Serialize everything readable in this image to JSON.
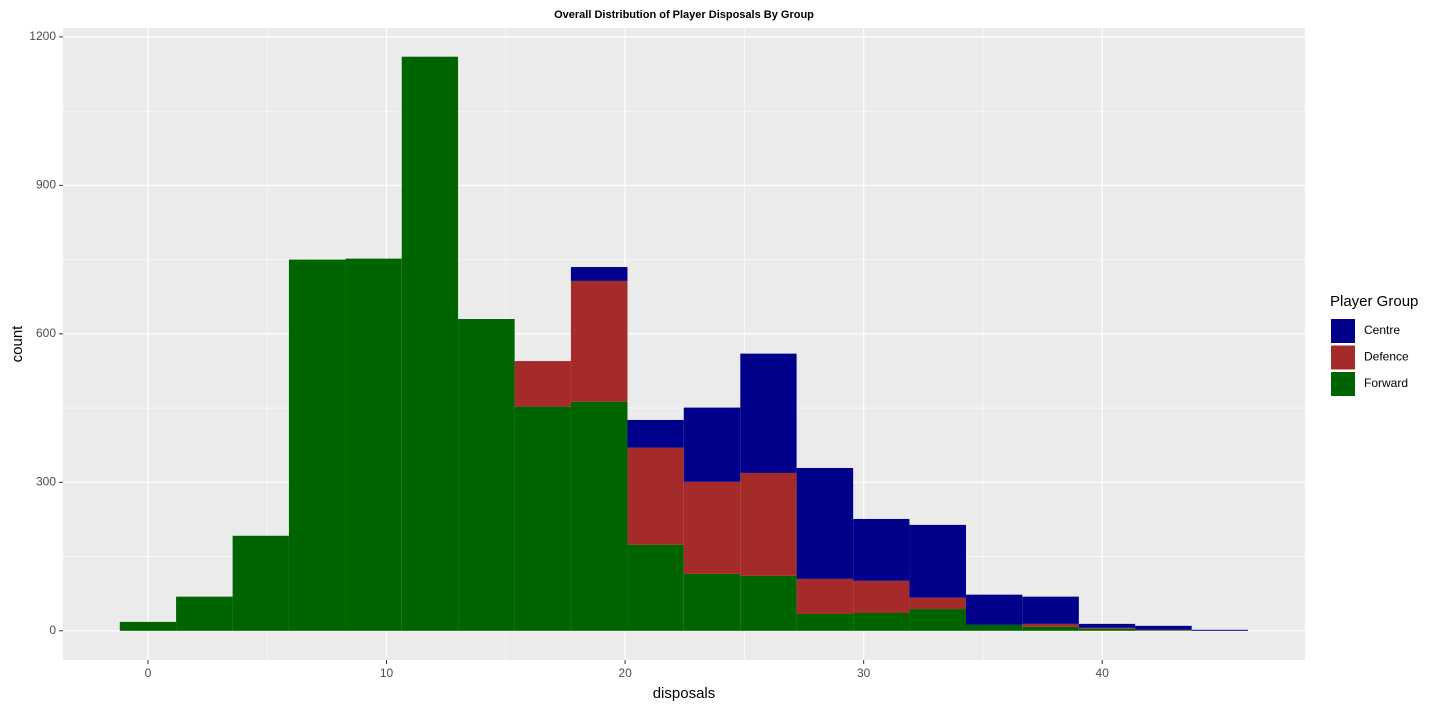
{
  "chart_data": {
    "type": "histogram",
    "title": "Overall Distribution of Player Disposals By Group",
    "x_label": "disposals",
    "y_label": "count",
    "legend_title": "Player Group",
    "legend_position": "right",
    "bins": [
      -1.18,
      1.18,
      3.55,
      5.91,
      8.28,
      10.64,
      13.0,
      15.37,
      17.73,
      20.1,
      22.46,
      24.83,
      27.19,
      29.56,
      31.92,
      34.29,
      36.65,
      39.02,
      41.38,
      43.75,
      46.11
    ],
    "stacked": true,
    "grid": true,
    "series": [
      {
        "name": "Centre",
        "color": "#00008b",
        "values": [
          0,
          0,
          0,
          0,
          0,
          0,
          0,
          0,
          28,
          56,
          150,
          241,
          224,
          125,
          147,
          61,
          55,
          8,
          8,
          2
        ]
      },
      {
        "name": "Defence",
        "color": "#a52a2a",
        "values": [
          0,
          0,
          0,
          0,
          0,
          0,
          0,
          92,
          244,
          196,
          186,
          208,
          71,
          65,
          23,
          0,
          6,
          2,
          1,
          0
        ]
      },
      {
        "name": "Forward",
        "color": "#006400",
        "values": [
          18,
          69,
          192,
          750,
          752,
          1160,
          630,
          453,
          463,
          174,
          115,
          111,
          34,
          36,
          44,
          12,
          8,
          4,
          1,
          0
        ]
      }
    ],
    "xlim": [
      -3.56,
      48.5
    ],
    "xticks": [
      0,
      10,
      20,
      30,
      40
    ],
    "ylim": [
      -59,
      1218
    ],
    "yticks": [
      0,
      300,
      600,
      900,
      1200
    ]
  }
}
